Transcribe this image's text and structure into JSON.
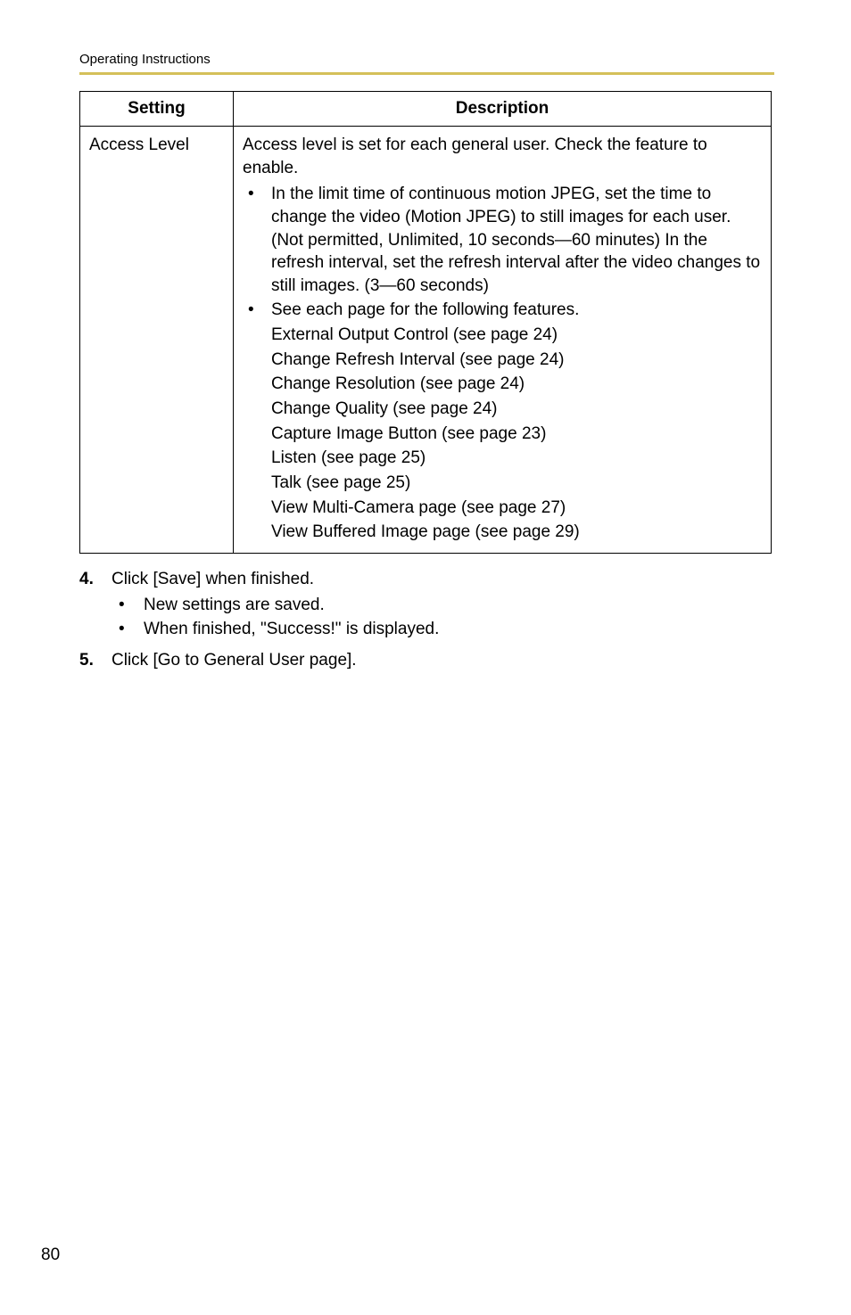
{
  "header": {
    "title": "Operating Instructions"
  },
  "table": {
    "columns": {
      "setting": "Setting",
      "description": "Description"
    },
    "row": {
      "setting": "Access Level",
      "intro": "Access level is set for each general user. Check the feature to enable.",
      "bullets": [
        "In the limit time of continuous motion JPEG, set the time to change the video (Motion JPEG) to still images for each user. (Not permitted, Unlimited, 10 seconds—60 minutes) In the refresh interval, set the refresh interval after the video changes to still images. (3—60 seconds)",
        "See each page for the following features."
      ],
      "features": [
        "External Output Control (see page 24)",
        "Change Refresh Interval (see page 24)",
        "Change Resolution (see page 24)",
        "Change Quality (see page 24)",
        "Capture Image Button (see page 23)",
        "Listen (see page 25)",
        "Talk (see page 25)",
        "View Multi-Camera page (see page 27)",
        "View Buffered Image page (see page 29)"
      ]
    }
  },
  "steps": [
    {
      "num": "4.",
      "text": "Click [Save] when finished.",
      "subs": [
        "New settings are saved.",
        "When finished, \"Success!\" is displayed."
      ]
    },
    {
      "num": "5.",
      "text": "Click [Go to General User page].",
      "subs": []
    }
  ],
  "pageNumber": "80",
  "colors": {
    "rule": "#d4c05a",
    "text": "#000000",
    "bg": "#ffffff"
  }
}
